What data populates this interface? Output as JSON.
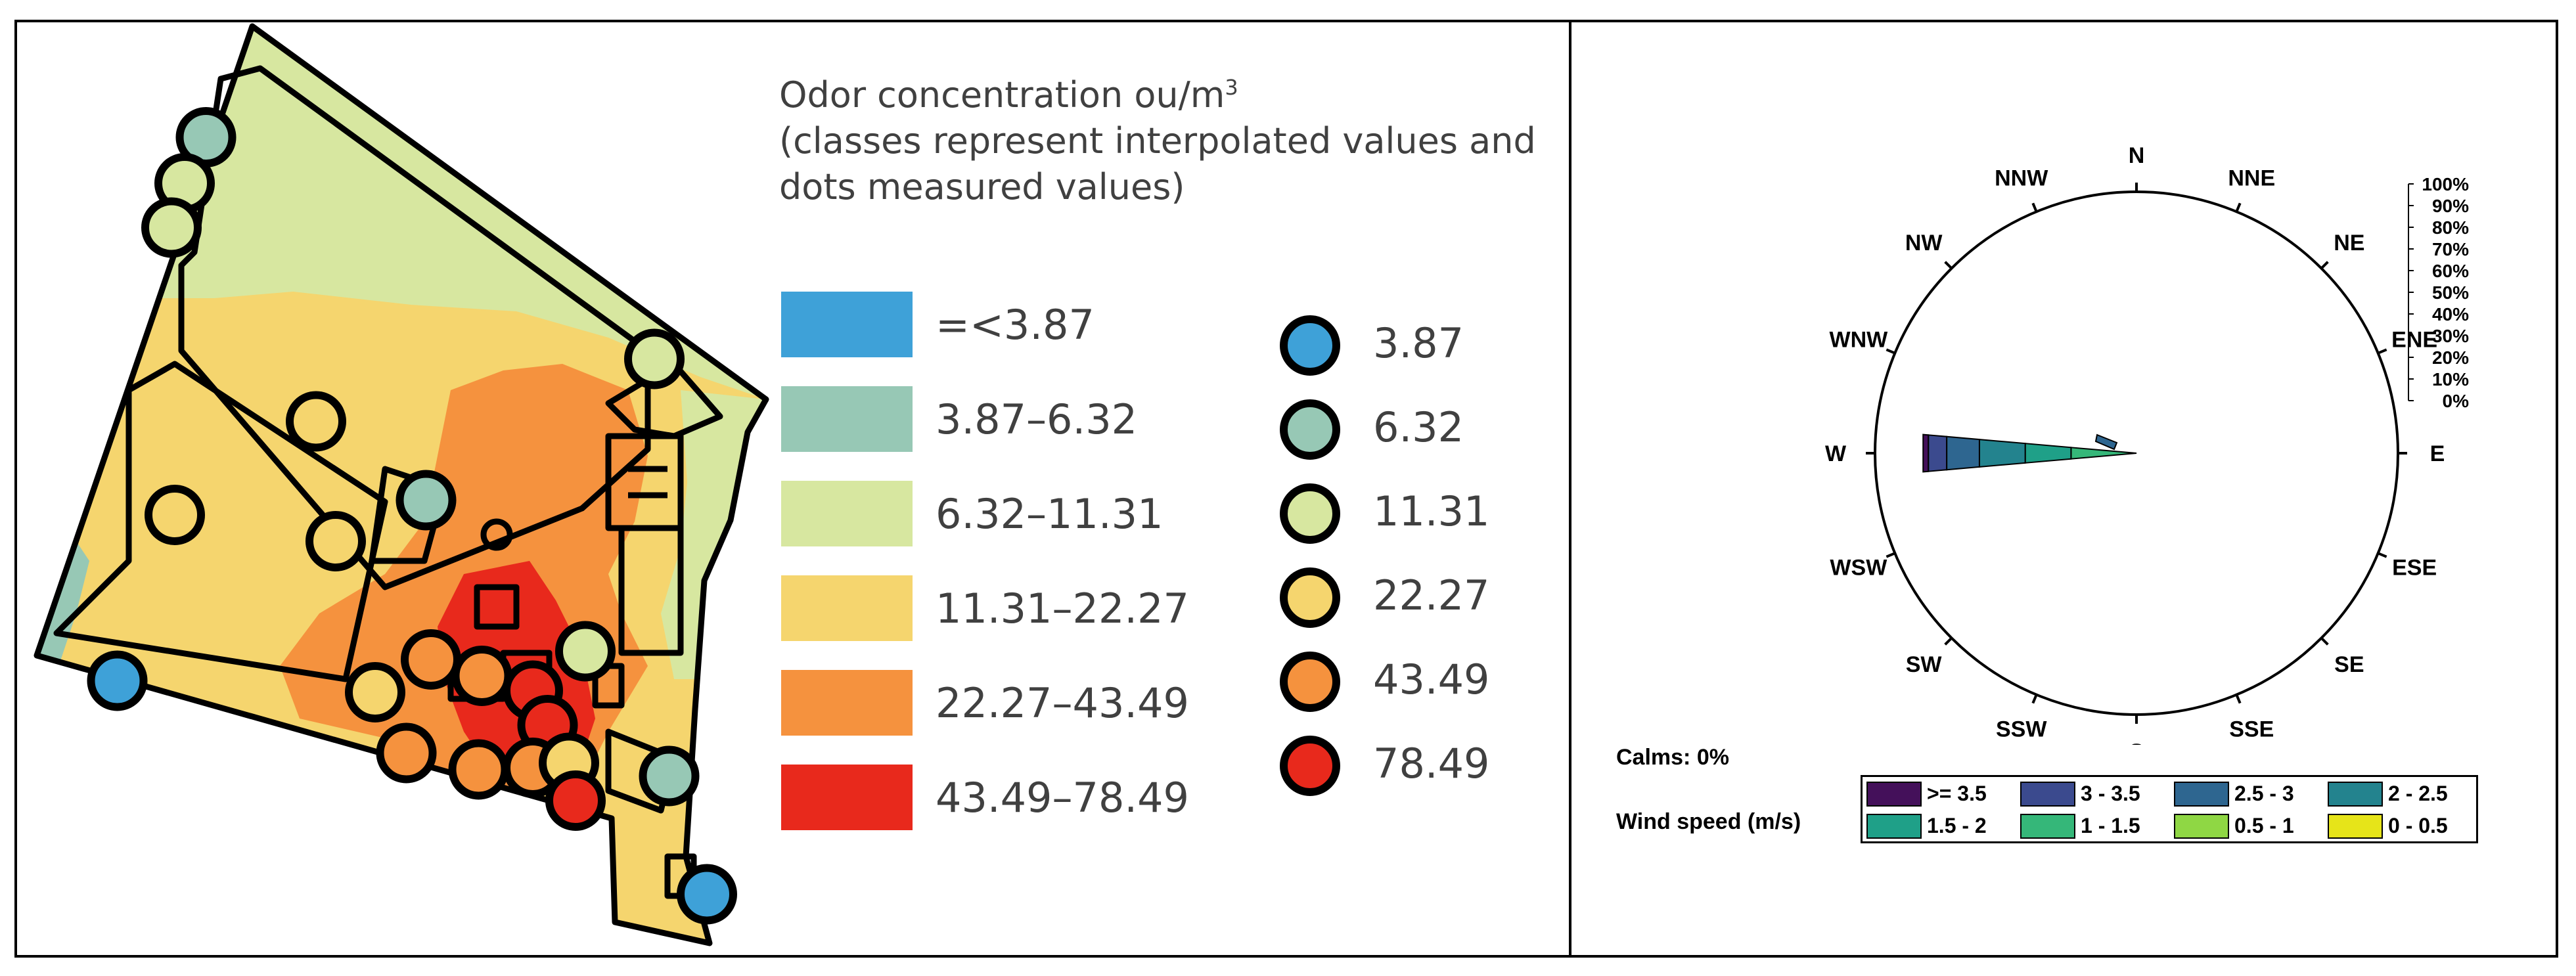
{
  "map": {
    "legend_title_line1": "Odor concentration ou/m",
    "legend_title_sup": "3",
    "legend_title_line2": "(classes represent interpolated values and",
    "legend_title_line3": "dots measured values)",
    "classes": [
      {
        "label": "=<3.87",
        "color": "#3ea1d8"
      },
      {
        "label": "3.87–6.32",
        "color": "#97c8b5"
      },
      {
        "label": "6.32–11.31",
        "color": "#d7e7a0"
      },
      {
        "label": "11.31–22.27",
        "color": "#f5d56e"
      },
      {
        "label": "22.27–43.49",
        "color": "#f5923e"
      },
      {
        "label": "43.49–78.49",
        "color": "#e8291c"
      }
    ],
    "dots": [
      {
        "label": "3.87",
        "color": "#3ea1d8"
      },
      {
        "label": "6.32",
        "color": "#97c8b5"
      },
      {
        "label": "11.31",
        "color": "#d7e7a0"
      },
      {
        "label": "22.27",
        "color": "#f5d56e"
      },
      {
        "label": "43.49",
        "color": "#f5923e"
      },
      {
        "label": "78.49",
        "color": "#e8291c"
      }
    ]
  },
  "windrose": {
    "directions": [
      "N",
      "NNE",
      "NE",
      "ENE",
      "E",
      "ESE",
      "SE",
      "SSE",
      "S",
      "SSW",
      "SW",
      "WSW",
      "W",
      "WNW",
      "NW",
      "NNW"
    ],
    "scale_labels": [
      "100%",
      "90%",
      "80%",
      "70%",
      "60%",
      "50%",
      "40%",
      "30%",
      "20%",
      "10%",
      "0%"
    ],
    "calms": "Calms: 0%",
    "wind_speed_title": "Wind speed (m/s)",
    "speed_bins": [
      {
        "label": ">= 3.5",
        "color": "#44105a"
      },
      {
        "label": "3 - 3.5",
        "color": "#3b4a8e"
      },
      {
        "label": "2.5 - 3",
        "color": "#2e6690"
      },
      {
        "label": "2 - 2.5",
        "color": "#23838e"
      },
      {
        "label": "1.5 - 2",
        "color": "#1fa088"
      },
      {
        "label": "1 - 1.5",
        "color": "#35b779"
      },
      {
        "label": "0.5 - 1",
        "color": "#8fd744"
      },
      {
        "label": "0 - 0.5",
        "color": "#e6e419"
      }
    ]
  }
}
